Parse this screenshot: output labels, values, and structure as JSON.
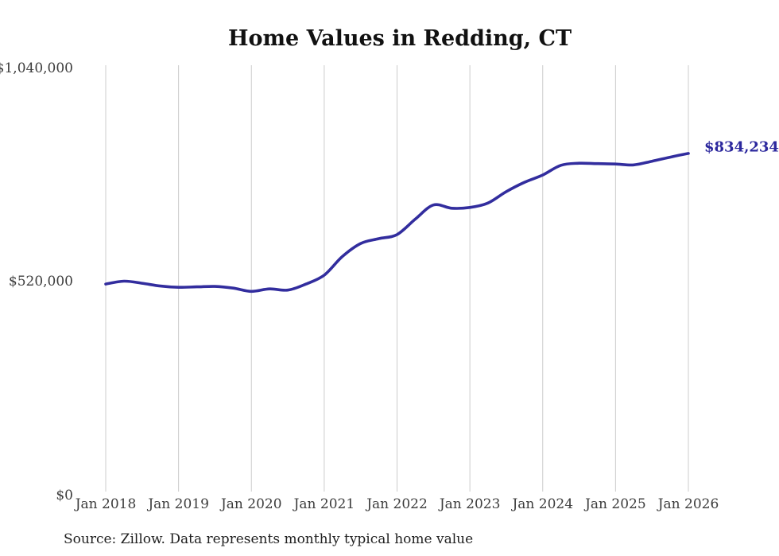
{
  "title": "Home Values in Redding, CT",
  "source_note": "Source: Zillow. Data represents monthly typical home value",
  "end_label": "$834,234",
  "colors": {
    "background": "#ffffff",
    "line": "#322d9e",
    "grid": "#cccccc",
    "axis_text": "#3d3d3d",
    "title_text": "#111111",
    "end_label_text": "#2b279d",
    "source_text": "#1f1f1f"
  },
  "chart_data": {
    "type": "line",
    "title": "Home Values in Redding, CT",
    "xlabel": "",
    "ylabel": "",
    "ylim": [
      0,
      1040000
    ],
    "y_ticks": [
      0,
      520000,
      1040000
    ],
    "y_tick_labels": [
      "$0",
      "$520,000",
      "$1,040,000"
    ],
    "x_tick_labels": [
      "Jan 2018",
      "Jan 2019",
      "Jan 2020",
      "Jan 2021",
      "Jan 2022",
      "Jan 2023",
      "Jan 2024",
      "Jan 2025",
      "Jan 2026"
    ],
    "grid": "vertical-only",
    "legend": "none",
    "series": [
      {
        "name": "Typical home value",
        "x": [
          "2018-01",
          "2018-04",
          "2018-07",
          "2018-10",
          "2019-01",
          "2019-04",
          "2019-07",
          "2019-10",
          "2020-01",
          "2020-04",
          "2020-07",
          "2020-10",
          "2021-01",
          "2021-04",
          "2021-07",
          "2021-10",
          "2022-01",
          "2022-04",
          "2022-07",
          "2022-10",
          "2023-01",
          "2023-04",
          "2023-07",
          "2023-10",
          "2024-01",
          "2024-04",
          "2024-07",
          "2024-10",
          "2025-01",
          "2025-04",
          "2025-07",
          "2025-10",
          "2026-01"
        ],
        "values": [
          512000,
          519000,
          514000,
          507000,
          504000,
          505000,
          506000,
          502000,
          494000,
          500000,
          497000,
          512000,
          534000,
          580000,
          612000,
          624000,
          634000,
          672000,
          707000,
          699000,
          701000,
          712000,
          740000,
          763000,
          781000,
          805000,
          810000,
          809000,
          808000,
          806000,
          815000,
          825000,
          834234
        ]
      }
    ],
    "final_value": 834234,
    "final_value_label": "$834,234"
  }
}
